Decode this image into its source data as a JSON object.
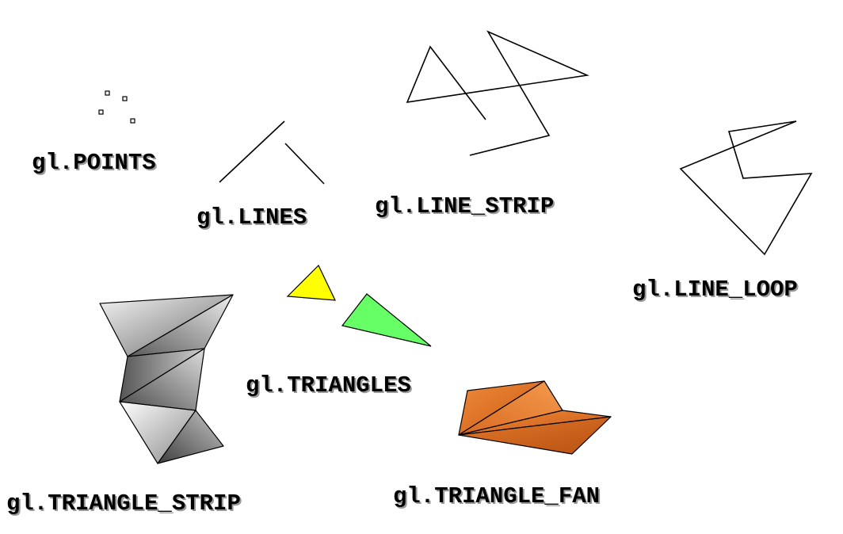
{
  "labels": {
    "points": "gl.POINTS",
    "lines": "gl.LINES",
    "line_strip": "gl.LINE_STRIP",
    "line_loop": "gl.LINE_LOOP",
    "triangles": "gl.TRIANGLES",
    "triangle_strip": "gl.TRIANGLE_STRIP",
    "triangle_fan": "gl.TRIANGLE_FAN"
  },
  "colors": {
    "triangle_1": "#ffff00",
    "triangle_2": "#66ff66",
    "fan": "#e8762a",
    "strip_gray": "#9a9a9a"
  }
}
